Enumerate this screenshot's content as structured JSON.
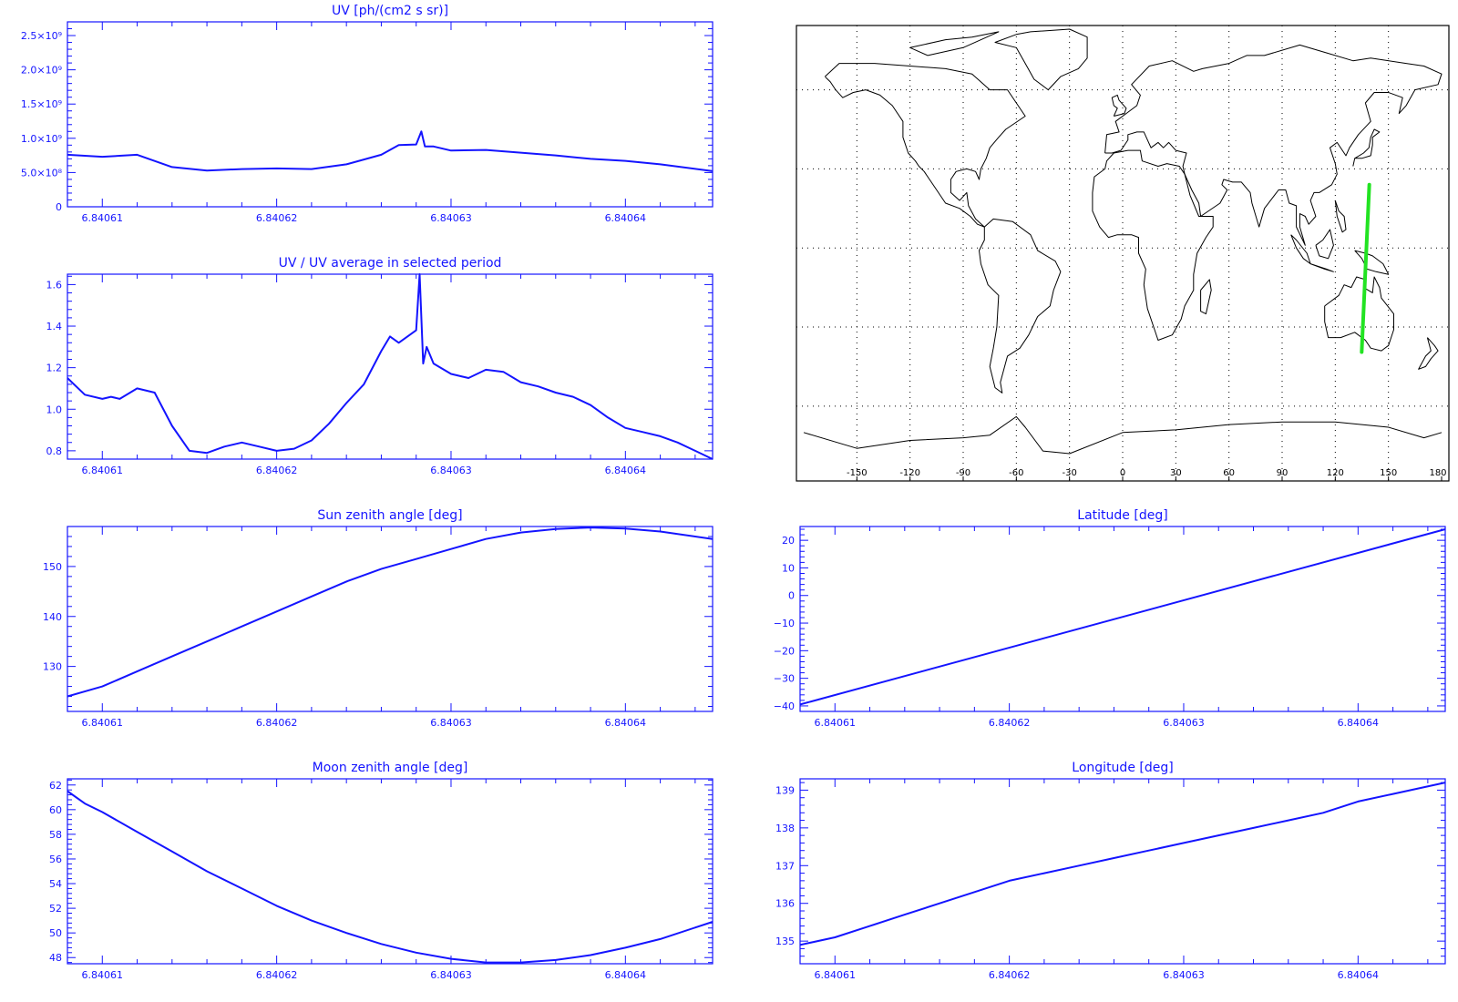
{
  "colors": {
    "axis": "#1414ff",
    "series": "#1414ff",
    "track": "#22e322",
    "coast": "#000000"
  },
  "chart_data": [
    {
      "id": "uv",
      "type": "line",
      "title": "UV [ph/(cm2 s sr)]",
      "xlim": [
        6.840608,
        6.840645
      ],
      "x_ticks": [
        6.84061,
        6.84062,
        6.84063,
        6.84064
      ],
      "x_tick_labels": [
        "6.84061",
        "6.84062",
        "6.84063",
        "6.84064"
      ],
      "ylim": [
        0,
        2700000000.0
      ],
      "y_ticks": [
        0,
        500000000.0,
        1000000000.0,
        1500000000.0,
        2000000000.0,
        2500000000.0
      ],
      "y_tick_labels": [
        "0",
        "5.0×10⁸",
        "1.0×10⁹",
        "1.5×10⁹",
        "2.0×10⁹",
        "2.5×10⁹"
      ],
      "x": [
        6.840608,
        6.84061,
        6.840612,
        6.840614,
        6.840616,
        6.840618,
        6.84062,
        6.840622,
        6.840624,
        6.840626,
        6.840627,
        6.840628,
        6.8406283,
        6.8406285,
        6.840629,
        6.84063,
        6.840632,
        6.840634,
        6.840636,
        6.840638,
        6.84064,
        6.840642,
        6.840645
      ],
      "y": [
        760000000.0,
        730000000.0,
        760000000.0,
        580000000.0,
        530000000.0,
        550000000.0,
        560000000.0,
        550000000.0,
        620000000.0,
        760000000.0,
        900000000.0,
        910000000.0,
        1100000000.0,
        880000000.0,
        880000000.0,
        820000000.0,
        830000000.0,
        790000000.0,
        750000000.0,
        700000000.0,
        670000000.0,
        620000000.0,
        520000000.0
      ]
    },
    {
      "id": "uv_ratio",
      "type": "line",
      "title": "UV / UV average in selected period",
      "xlim": [
        6.840608,
        6.840645
      ],
      "x_ticks": [
        6.84061,
        6.84062,
        6.84063,
        6.84064
      ],
      "x_tick_labels": [
        "6.84061",
        "6.84062",
        "6.84063",
        "6.84064"
      ],
      "ylim": [
        0.76,
        1.65
      ],
      "y_ticks": [
        0.8,
        1.0,
        1.2,
        1.4,
        1.6
      ],
      "y_tick_labels": [
        "0.8",
        "1.0",
        "1.2",
        "1.4",
        "1.6"
      ],
      "x": [
        6.840608,
        6.840609,
        6.84061,
        6.8406105,
        6.840611,
        6.840612,
        6.840613,
        6.840614,
        6.840615,
        6.840616,
        6.840617,
        6.840618,
        6.840619,
        6.84062,
        6.840621,
        6.840622,
        6.840623,
        6.840624,
        6.840625,
        6.840626,
        6.8406265,
        6.840627,
        6.840628,
        6.8406282,
        6.8406284,
        6.8406286,
        6.840629,
        6.84063,
        6.840631,
        6.840632,
        6.840633,
        6.840634,
        6.840635,
        6.840636,
        6.840637,
        6.840638,
        6.840639,
        6.84064,
        6.840641,
        6.840642,
        6.840643,
        6.840644,
        6.840645
      ],
      "y": [
        1.15,
        1.07,
        1.05,
        1.06,
        1.05,
        1.1,
        1.08,
        0.92,
        0.8,
        0.79,
        0.82,
        0.84,
        0.82,
        0.8,
        0.81,
        0.85,
        0.93,
        1.03,
        1.12,
        1.28,
        1.35,
        1.32,
        1.38,
        1.65,
        1.22,
        1.3,
        1.22,
        1.17,
        1.15,
        1.19,
        1.18,
        1.13,
        1.11,
        1.08,
        1.06,
        1.02,
        0.96,
        0.91,
        0.89,
        0.87,
        0.84,
        0.8,
        0.76
      ]
    },
    {
      "id": "sun_zenith",
      "type": "line",
      "title": "Sun zenith angle [deg]",
      "xlim": [
        6.840608,
        6.840645
      ],
      "x_ticks": [
        6.84061,
        6.84062,
        6.84063,
        6.84064
      ],
      "x_tick_labels": [
        "6.84061",
        "6.84062",
        "6.84063",
        "6.84064"
      ],
      "ylim": [
        121,
        158
      ],
      "y_ticks": [
        130,
        140,
        150
      ],
      "y_tick_labels": [
        "130",
        "140",
        "150"
      ],
      "x": [
        6.840608,
        6.84061,
        6.840612,
        6.840614,
        6.840616,
        6.840618,
        6.84062,
        6.840622,
        6.840624,
        6.840626,
        6.840628,
        6.84063,
        6.840632,
        6.840634,
        6.840636,
        6.840638,
        6.84064,
        6.840642,
        6.840645
      ],
      "y": [
        124,
        126,
        129,
        132,
        135,
        138,
        141,
        144,
        147,
        149.5,
        151.5,
        153.5,
        155.5,
        156.8,
        157.5,
        157.8,
        157.6,
        157,
        155.5
      ]
    },
    {
      "id": "moon_zenith",
      "type": "line",
      "title": "Moon zenith angle [deg]",
      "xlim": [
        6.840608,
        6.840645
      ],
      "x_ticks": [
        6.84061,
        6.84062,
        6.84063,
        6.84064
      ],
      "x_tick_labels": [
        "6.84061",
        "6.84062",
        "6.84063",
        "6.84064"
      ],
      "ylim": [
        47.5,
        62.5
      ],
      "y_ticks": [
        48,
        50,
        52,
        54,
        56,
        58,
        60,
        62
      ],
      "y_tick_labels": [
        "48",
        "50",
        "52",
        "54",
        "56",
        "58",
        "60",
        "62"
      ],
      "x": [
        6.840608,
        6.840609,
        6.84061,
        6.840612,
        6.840614,
        6.840616,
        6.840618,
        6.84062,
        6.840622,
        6.840624,
        6.840626,
        6.840628,
        6.84063,
        6.840632,
        6.840634,
        6.840636,
        6.840638,
        6.84064,
        6.840642,
        6.840645
      ],
      "y": [
        61.5,
        60.5,
        59.8,
        58.2,
        56.6,
        55,
        53.6,
        52.2,
        51,
        50,
        49.1,
        48.4,
        47.9,
        47.6,
        47.6,
        47.8,
        48.2,
        48.8,
        49.5,
        50.9
      ]
    },
    {
      "id": "latitude",
      "type": "line",
      "title": "Latitude [deg]",
      "xlim": [
        6.840608,
        6.840645
      ],
      "x_ticks": [
        6.84061,
        6.84062,
        6.84063,
        6.84064
      ],
      "x_tick_labels": [
        "6.84061",
        "6.84062",
        "6.84063",
        "6.84064"
      ],
      "ylim": [
        -42,
        25
      ],
      "y_ticks": [
        -40,
        -30,
        -20,
        -10,
        0,
        10,
        20
      ],
      "y_tick_labels": [
        "−40",
        "−30",
        "−20",
        "−10",
        "0",
        "10",
        "20"
      ],
      "x": [
        6.840608,
        6.840645
      ],
      "y": [
        -39.5,
        24
      ]
    },
    {
      "id": "longitude",
      "type": "line",
      "title": "Longitude [deg]",
      "xlim": [
        6.840608,
        6.840645
      ],
      "x_ticks": [
        6.84061,
        6.84062,
        6.84063,
        6.84064
      ],
      "x_tick_labels": [
        "6.84061",
        "6.84062",
        "6.84063",
        "6.84064"
      ],
      "ylim": [
        134.4,
        139.3
      ],
      "y_ticks": [
        135,
        136,
        137,
        138,
        139
      ],
      "y_tick_labels": [
        "135",
        "136",
        "137",
        "138",
        "139"
      ],
      "x": [
        6.840608,
        6.84061,
        6.840612,
        6.840614,
        6.840616,
        6.840618,
        6.84062,
        6.840622,
        6.840624,
        6.840626,
        6.840628,
        6.84063,
        6.840632,
        6.840634,
        6.840636,
        6.840638,
        6.84064,
        6.840642,
        6.840645
      ],
      "y": [
        134.9,
        135.1,
        135.4,
        135.7,
        136.0,
        136.3,
        136.6,
        136.8,
        137.0,
        137.2,
        137.4,
        137.6,
        137.8,
        138.0,
        138.2,
        138.4,
        138.7,
        138.9,
        139.2
      ]
    }
  ],
  "map": {
    "lon_ticks": [
      -150,
      -120,
      -90,
      -60,
      -30,
      0,
      30,
      60,
      90,
      120,
      150,
      180
    ],
    "lon_tick_labels": [
      "-150",
      "-120",
      "-90",
      "-60",
      "-30",
      "0",
      "30",
      "60",
      "90",
      "120",
      "150",
      "180"
    ],
    "track": {
      "lon": [
        134.9,
        139.2
      ],
      "lat": [
        -39.5,
        24
      ]
    }
  }
}
